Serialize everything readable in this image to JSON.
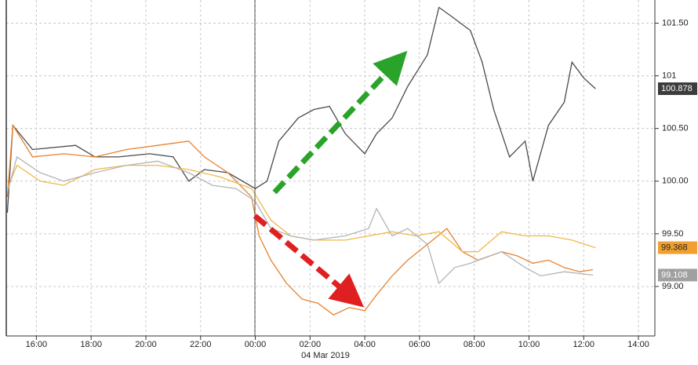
{
  "chart_data": {
    "type": "line",
    "date_label": "04 Mar 2019",
    "xlim": [
      14.9,
      38.6
    ],
    "ylim": [
      98.53,
      101.72
    ],
    "xticks": [
      {
        "value": 16,
        "label": "16:00"
      },
      {
        "value": 18,
        "label": "18:00"
      },
      {
        "value": 20,
        "label": "20:00"
      },
      {
        "value": 22,
        "label": "22:00"
      },
      {
        "value": 24,
        "label": "00:00"
      },
      {
        "value": 26,
        "label": "02:00"
      },
      {
        "value": 28,
        "label": "04:00"
      },
      {
        "value": 30,
        "label": "06:00"
      },
      {
        "value": 32,
        "label": "08:00"
      },
      {
        "value": 34,
        "label": "10:00"
      },
      {
        "value": 36,
        "label": "12:00"
      },
      {
        "value": 38,
        "label": "14:00"
      }
    ],
    "yticks": [
      {
        "value": 99,
        "label": "99.00"
      },
      {
        "value": 99.5,
        "label": "99.50"
      },
      {
        "value": 100,
        "label": "100.00"
      },
      {
        "value": 100.5,
        "label": "100.50"
      },
      {
        "value": 101,
        "label": "101"
      },
      {
        "value": 101.5,
        "label": "101.50"
      }
    ],
    "grid": true,
    "series": [
      {
        "color": "#4a4a4a",
        "label_color": "#3c3c3c",
        "last_label": "100.878",
        "x": [
          14.94,
          15.14,
          15.86,
          17.43,
          18.14,
          19.0,
          20.14,
          21.0,
          21.57,
          22.14,
          23.0,
          24.0,
          24.43,
          24.86,
          25.57,
          26.14,
          26.71,
          27.29,
          28.0,
          28.43,
          29.0,
          29.57,
          30.29,
          30.71,
          31.14,
          31.86,
          32.29,
          32.71,
          33.29,
          33.86,
          34.14,
          34.71,
          35.29,
          35.57,
          36.0,
          36.43
        ],
        "values": [
          99.7,
          100.53,
          100.3,
          100.34,
          100.23,
          100.23,
          100.26,
          100.23,
          100.0,
          100.11,
          100.08,
          99.93,
          100.0,
          100.38,
          100.6,
          100.68,
          100.71,
          100.45,
          100.26,
          100.45,
          100.6,
          100.9,
          101.2,
          101.65,
          101.57,
          101.43,
          101.13,
          100.68,
          100.23,
          100.38,
          100.0,
          100.53,
          100.75,
          101.13,
          100.98,
          100.878
        ]
      },
      {
        "color": "#e8822d",
        "x": [
          14.94,
          15.14,
          15.86,
          17.0,
          18.14,
          19.29,
          20.43,
          21.57,
          22.14,
          23.0,
          23.86,
          24.14,
          24.57,
          25.14,
          25.71,
          26.29,
          26.86,
          27.43,
          28.0,
          28.43,
          29.0,
          29.57,
          30.29,
          31.0,
          31.57,
          32.14,
          33.0,
          33.57,
          34.14,
          34.71,
          35.29,
          35.86,
          36.34
        ],
        "values": [
          99.85,
          100.53,
          100.23,
          100.26,
          100.23,
          100.3,
          100.34,
          100.38,
          100.23,
          100.08,
          99.85,
          99.48,
          99.25,
          99.03,
          98.88,
          98.84,
          98.73,
          98.8,
          98.77,
          98.92,
          99.1,
          99.25,
          99.4,
          99.55,
          99.33,
          99.25,
          99.33,
          99.29,
          99.22,
          99.25,
          99.18,
          99.14,
          99.16
        ]
      },
      {
        "color": "#f0b849",
        "label_color": "#f0a030",
        "last_label": "99.368",
        "x": [
          14.94,
          15.29,
          16.14,
          17.0,
          18.14,
          19.29,
          20.43,
          21.57,
          22.71,
          23.86,
          24.57,
          25.29,
          26.14,
          27.29,
          28.14,
          29.0,
          29.86,
          30.71,
          31.57,
          32.14,
          33.0,
          33.86,
          34.71,
          35.57,
          36.43
        ],
        "values": [
          99.93,
          100.15,
          100.0,
          99.96,
          100.11,
          100.15,
          100.15,
          100.11,
          100.04,
          99.93,
          99.63,
          99.48,
          99.44,
          99.44,
          99.48,
          99.52,
          99.48,
          99.52,
          99.33,
          99.33,
          99.52,
          99.48,
          99.48,
          99.44,
          99.368
        ]
      },
      {
        "color": "#b4b4b4",
        "label_color": "#a0a0a0",
        "last_label": "99.108",
        "x": [
          14.94,
          15.29,
          16.14,
          17.0,
          18.14,
          19.29,
          20.43,
          21.57,
          22.43,
          23.29,
          24.0,
          24.57,
          25.29,
          26.14,
          27.29,
          28.14,
          28.43,
          29.0,
          29.57,
          30.29,
          30.71,
          31.29,
          31.86,
          33.0,
          33.86,
          34.43,
          35.29,
          36.34
        ],
        "values": [
          99.89,
          100.23,
          100.08,
          100.0,
          100.08,
          100.15,
          100.19,
          100.08,
          99.96,
          99.93,
          99.81,
          99.55,
          99.48,
          99.44,
          99.48,
          99.55,
          99.74,
          99.48,
          99.55,
          99.4,
          99.03,
          99.18,
          99.22,
          99.33,
          99.18,
          99.1,
          99.14,
          99.108
        ]
      }
    ]
  }
}
